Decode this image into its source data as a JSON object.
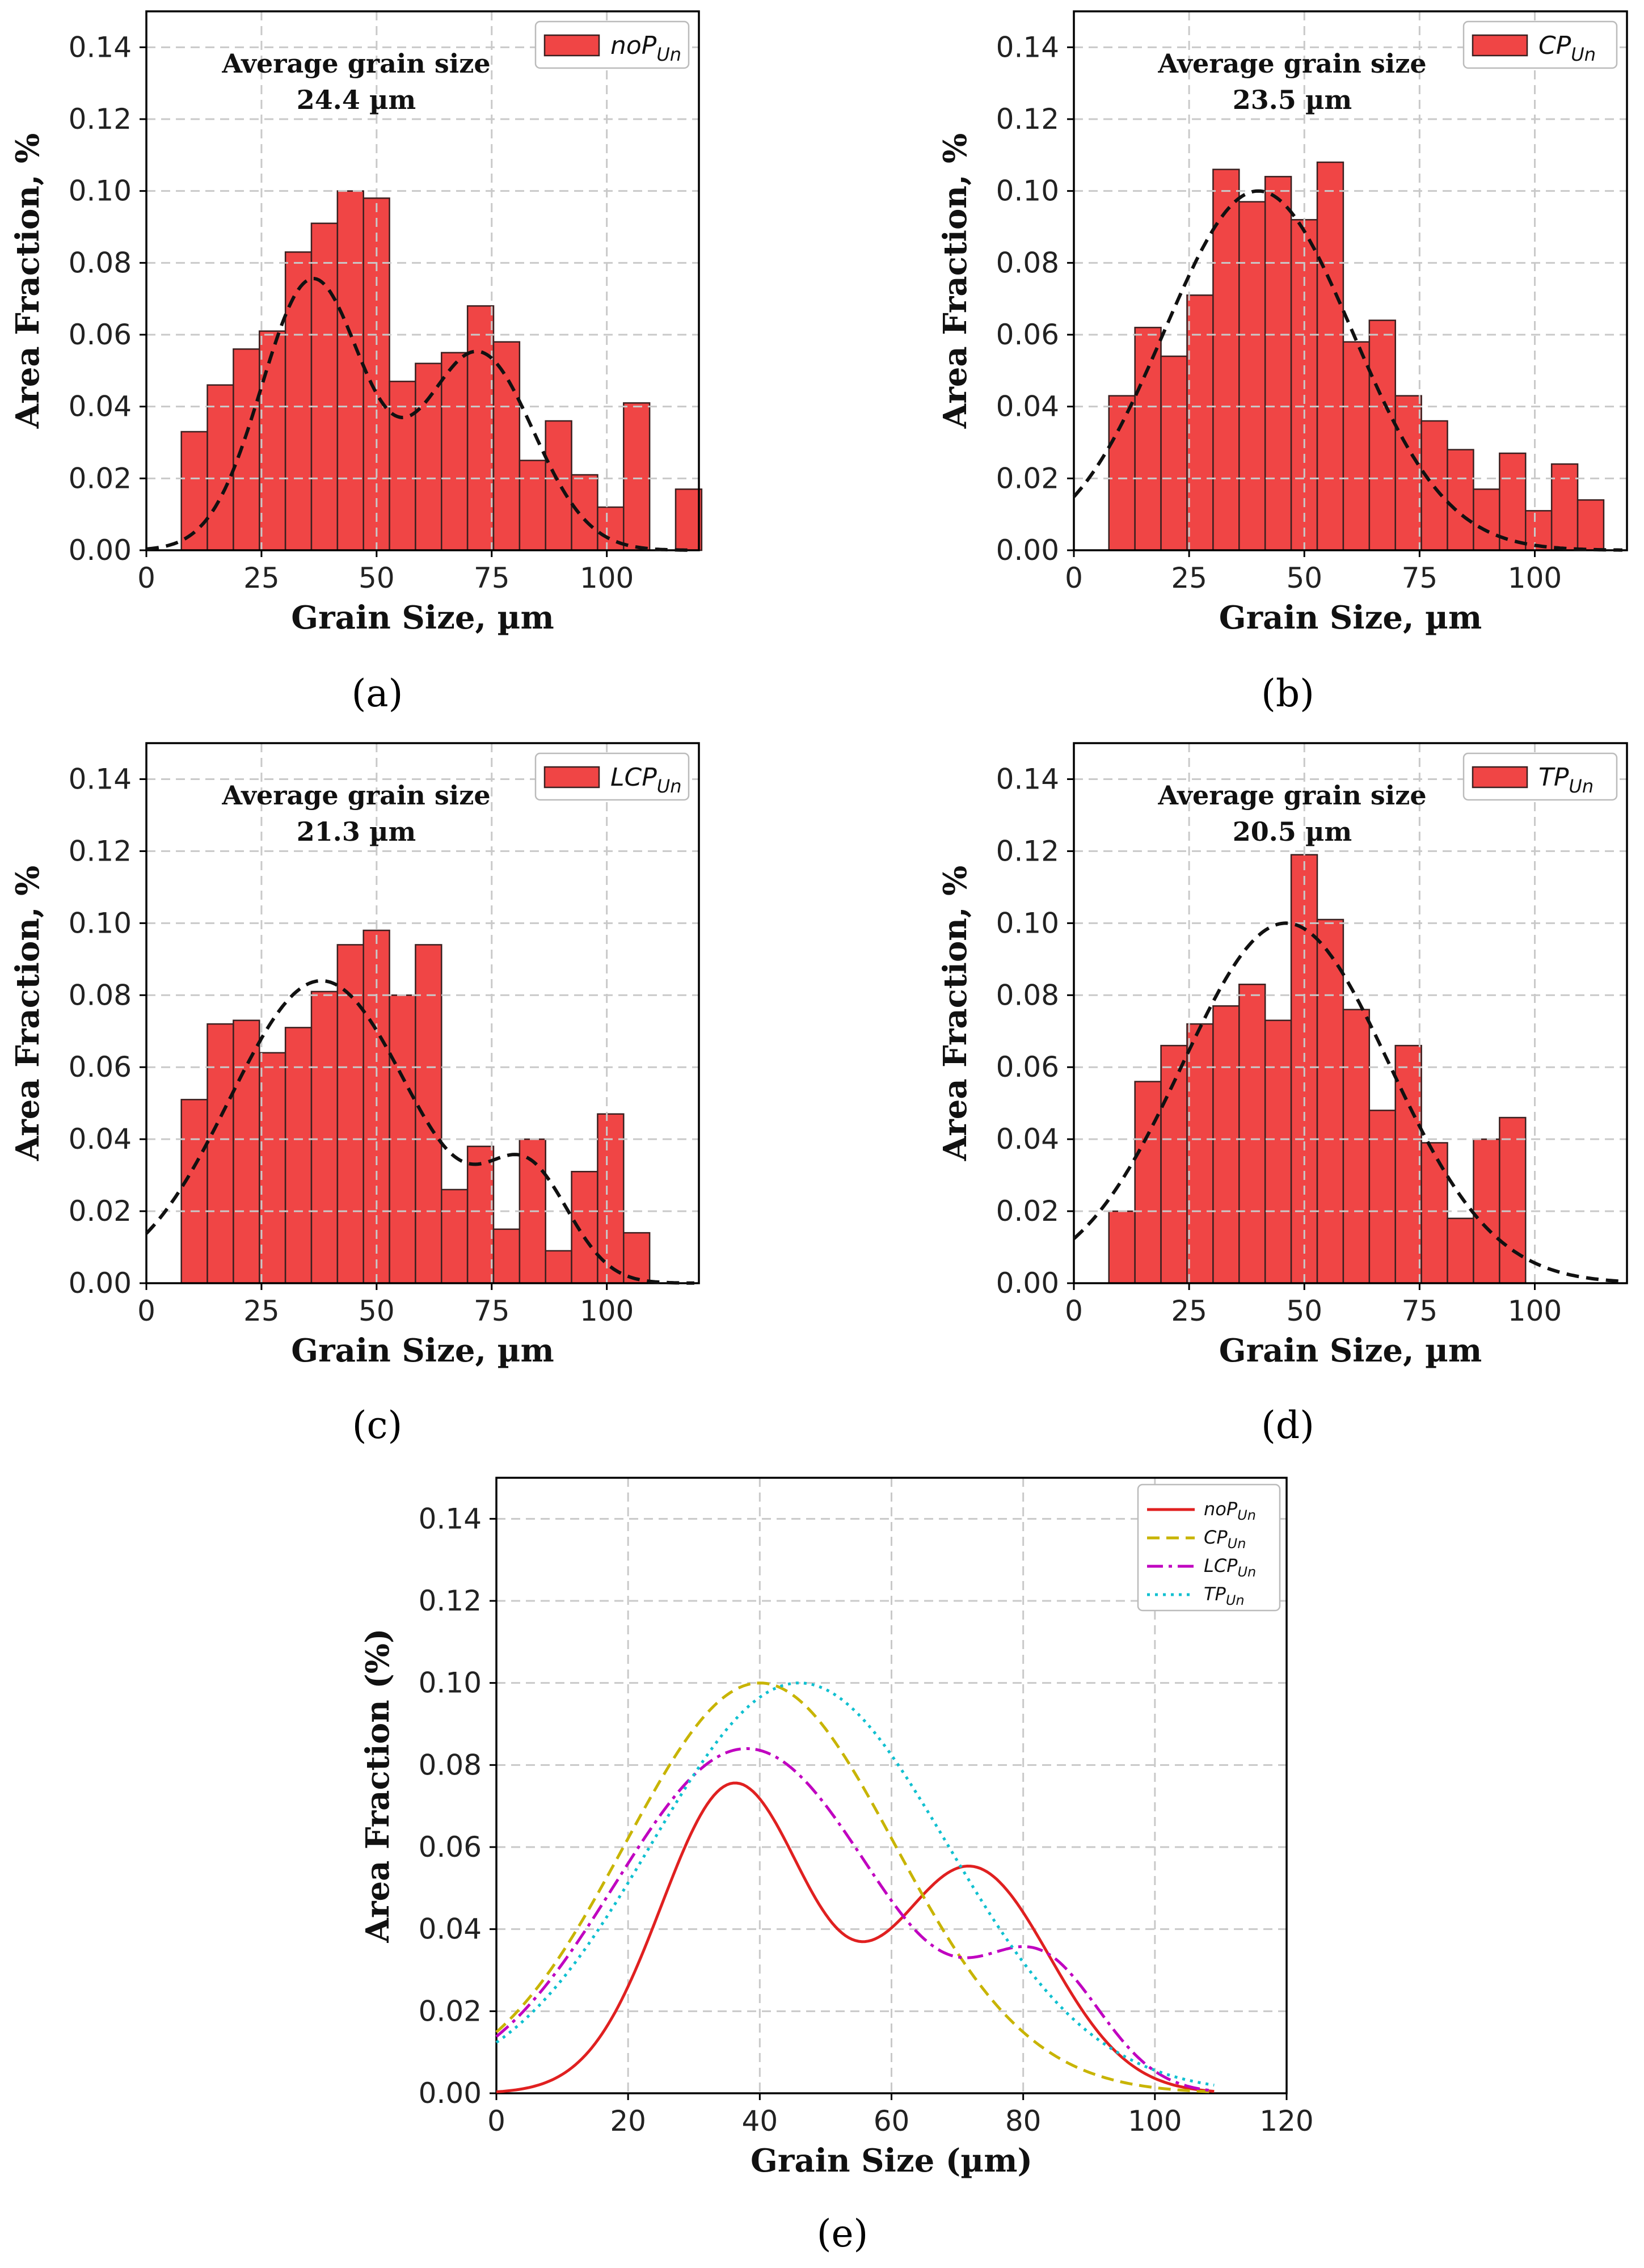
{
  "colors": {
    "bar_fill": "#f04545",
    "bar_edge": "#3a2020",
    "fit_line": "#111111",
    "grid": "#c9c9c9"
  },
  "chart_data": [
    {
      "panel": "(a)",
      "type": "bar",
      "legend": {
        "base": "noP",
        "sub": "Un"
      },
      "annotation": {
        "line1": "Average grain size",
        "line2": "24.4 µm"
      },
      "xlabel": "Grain Size, µm",
      "ylabel": "Area Fraction, %",
      "xlim": [
        0,
        120
      ],
      "ylim": [
        0,
        0.15
      ],
      "xticks": [
        0,
        25,
        50,
        75,
        100
      ],
      "yticks": [
        0.0,
        0.02,
        0.04,
        0.06,
        0.08,
        0.1,
        0.12,
        0.14
      ],
      "bin_start": 7.6,
      "bin_width": 5.65,
      "values": [
        0.033,
        0.046,
        0.056,
        0.061,
        0.083,
        0.091,
        0.1,
        0.098,
        0.047,
        0.052,
        0.055,
        0.068,
        0.058,
        0.025,
        0.036,
        0.021,
        0.012,
        0.041,
        0.0,
        0.017
      ],
      "fit": {
        "kind": "bimodal",
        "peaks": [
          [
            0.075,
            36,
            11
          ],
          [
            0.055,
            72,
            12
          ]
        ],
        "x_range": [
          0,
          119
        ]
      }
    },
    {
      "panel": "(b)",
      "type": "bar",
      "legend": {
        "base": "CP",
        "sub": "Un"
      },
      "annotation": {
        "line1": "Average grain size",
        "line2": "23.5 µm"
      },
      "xlabel": "Grain Size, µm",
      "ylabel": "Area Fraction, %",
      "xlim": [
        0,
        120
      ],
      "ylim": [
        0,
        0.15
      ],
      "xticks": [
        0,
        25,
        50,
        75,
        100
      ],
      "yticks": [
        0.0,
        0.02,
        0.04,
        0.06,
        0.08,
        0.1,
        0.12,
        0.14
      ],
      "bin_start": 7.6,
      "bin_width": 5.65,
      "values": [
        0.043,
        0.062,
        0.054,
        0.071,
        0.106,
        0.097,
        0.104,
        0.092,
        0.108,
        0.058,
        0.064,
        0.043,
        0.036,
        0.028,
        0.017,
        0.027,
        0.011,
        0.024,
        0.014
      ],
      "fit": {
        "kind": "gauss",
        "peaks": [
          [
            0.1,
            40,
            20.5
          ]
        ],
        "x_range": [
          0,
          119
        ]
      }
    },
    {
      "panel": "(c)",
      "type": "bar",
      "legend": {
        "base": "LCP",
        "sub": "Un"
      },
      "annotation": {
        "line1": "Average grain size",
        "line2": "21.3 µm"
      },
      "xlabel": "Grain Size, µm",
      "ylabel": "Area Fraction, %",
      "xlim": [
        0,
        120
      ],
      "ylim": [
        0,
        0.15
      ],
      "xticks": [
        0,
        25,
        50,
        75,
        100
      ],
      "yticks": [
        0.0,
        0.02,
        0.04,
        0.06,
        0.08,
        0.1,
        0.12,
        0.14
      ],
      "bin_start": 7.6,
      "bin_width": 5.65,
      "values": [
        0.051,
        0.072,
        0.073,
        0.064,
        0.071,
        0.081,
        0.094,
        0.098,
        0.08,
        0.094,
        0.026,
        0.038,
        0.015,
        0.04,
        0.009,
        0.031,
        0.047,
        0.014
      ],
      "fit": {
        "kind": "bimodal",
        "peaks": [
          [
            0.084,
            38,
            20
          ],
          [
            0.028,
            83,
            9
          ]
        ],
        "x_range": [
          0,
          119
        ]
      }
    },
    {
      "panel": "(d)",
      "type": "bar",
      "legend": {
        "base": "TP",
        "sub": "Un"
      },
      "annotation": {
        "line1": "Average grain size",
        "line2": "20.5 µm"
      },
      "xlabel": "Grain Size, µm",
      "ylabel": "Area Fraction, %",
      "xlim": [
        0,
        120
      ],
      "ylim": [
        0,
        0.15
      ],
      "xticks": [
        0,
        25,
        50,
        75,
        100
      ],
      "yticks": [
        0.0,
        0.02,
        0.04,
        0.06,
        0.08,
        0.1,
        0.12,
        0.14
      ],
      "bin_start": 7.6,
      "bin_width": 5.65,
      "values": [
        0.02,
        0.056,
        0.066,
        0.072,
        0.077,
        0.083,
        0.073,
        0.119,
        0.101,
        0.076,
        0.048,
        0.066,
        0.039,
        0.018,
        0.04,
        0.046
      ],
      "fit": {
        "kind": "gauss",
        "peaks": [
          [
            0.1,
            46,
            22.5
          ]
        ],
        "x_range": [
          0,
          119
        ]
      }
    },
    {
      "panel": "(e)",
      "type": "line",
      "xlabel": "Grain Size (µm)",
      "ylabel": "Area Fraction (%)",
      "xlim": [
        0,
        120
      ],
      "ylim": [
        0,
        0.15
      ],
      "xticks": [
        0,
        20,
        40,
        60,
        80,
        100,
        120
      ],
      "yticks": [
        0.0,
        0.02,
        0.04,
        0.06,
        0.08,
        0.1,
        0.12,
        0.14
      ],
      "x_range": [
        0,
        109
      ],
      "series": [
        {
          "base": "noP",
          "sub": "Un",
          "color": "#e02020",
          "dash": "",
          "kind": "bimodal",
          "peaks": [
            [
              0.075,
              36,
              11
            ],
            [
              0.055,
              72,
              12
            ]
          ]
        },
        {
          "base": "CP",
          "sub": "Un",
          "color": "#c8b400",
          "dash": "22 12",
          "kind": "gauss",
          "peaks": [
            [
              0.1,
              40,
              20.5
            ]
          ]
        },
        {
          "base": "LCP",
          "sub": "Un",
          "color": "#c000c0",
          "dash": "28 10 6 10",
          "kind": "bimodal",
          "peaks": [
            [
              0.084,
              38,
              20
            ],
            [
              0.028,
              83,
              9
            ]
          ]
        },
        {
          "base": "TP",
          "sub": "Un",
          "color": "#10c0d0",
          "dash": "5 9",
          "kind": "gauss",
          "peaks": [
            [
              0.1,
              46,
              22.5
            ]
          ]
        }
      ]
    }
  ]
}
